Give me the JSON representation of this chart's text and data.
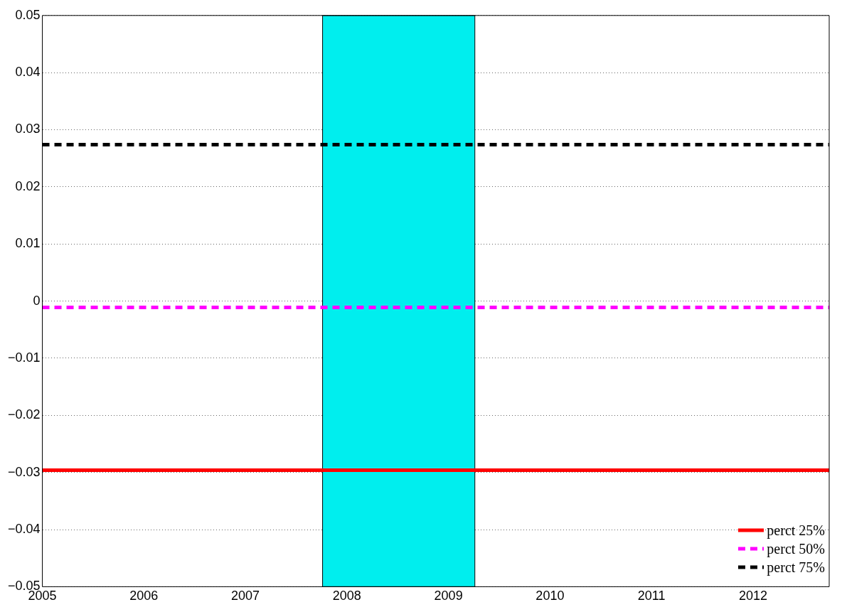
{
  "chart_data": {
    "type": "line",
    "xlim": [
      2005,
      2012.75
    ],
    "xticks": [
      2005,
      2006,
      2007,
      2008,
      2009,
      2010,
      2011,
      2012
    ],
    "ylim": [
      -0.05,
      0.05
    ],
    "yticks": [
      {
        "value": -0.05,
        "label": "−0.05"
      },
      {
        "value": -0.04,
        "label": "−0.04"
      },
      {
        "value": -0.03,
        "label": "−0.03"
      },
      {
        "value": -0.02,
        "label": "−0.02"
      },
      {
        "value": -0.01,
        "label": "−0.01"
      },
      0,
      0.01,
      0.02,
      0.03,
      0.04,
      0.05
    ],
    "grid": "y",
    "legend": "bottom right",
    "bands": [
      {
        "axis": "x",
        "from": 2007.76,
        "to": 2009.26,
        "color": "#00eeee"
      }
    ],
    "ref_lines": [
      {
        "axis": "y",
        "value": -0.0296,
        "label": "perct 25%",
        "color": "#ff0000",
        "line_style": "solid"
      },
      {
        "axis": "y",
        "value": -0.0011,
        "label": "perct 50%",
        "color": "#ff00ff",
        "line_style": "dashed"
      },
      {
        "axis": "y",
        "value": 0.0274,
        "label": "perct 75%",
        "color": "#000000",
        "line_style": "dashed"
      }
    ]
  }
}
